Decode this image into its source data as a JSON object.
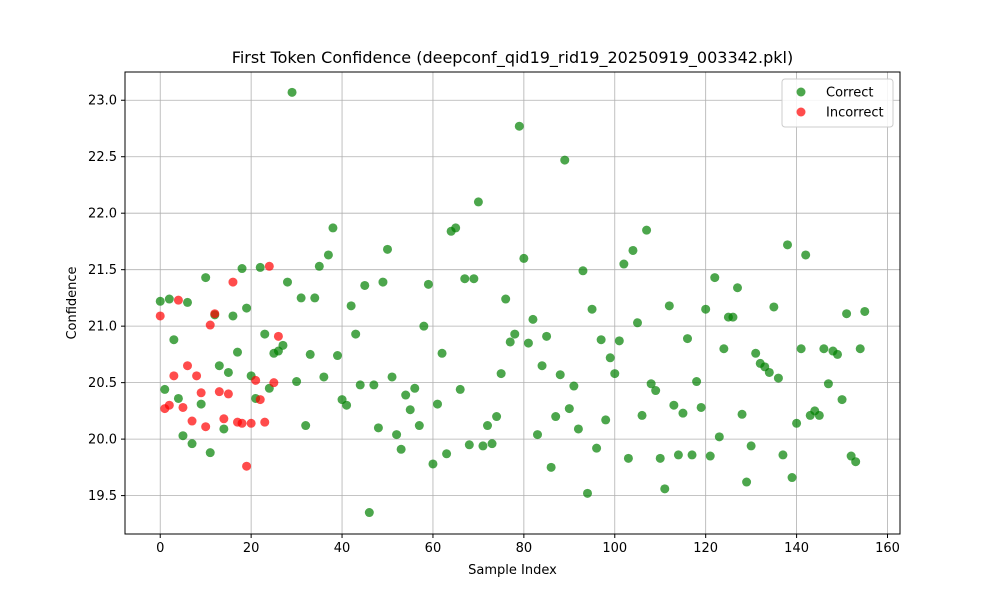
{
  "chart_data": {
    "type": "scatter",
    "title": "First Token Confidence (deepconf_qid19_rid19_20250919_003342.pkl)",
    "xlabel": "Sample Index",
    "ylabel": "Confidence",
    "xlim": [
      -7.75,
      162.75
    ],
    "ylim": [
      19.16,
      32.25
    ],
    "ylim_view": [
      19.16,
      23.25
    ],
    "xticks": [
      0,
      20,
      40,
      60,
      80,
      100,
      120,
      140,
      160
    ],
    "yticks": [
      19.5,
      20.0,
      20.5,
      21.0,
      21.5,
      22.0,
      22.5,
      23.0
    ],
    "grid": true,
    "legend_position": "top-right",
    "series": [
      {
        "name": "Correct",
        "color": "#008000",
        "x": [
          0,
          1,
          2,
          3,
          4,
          5,
          6,
          7,
          9,
          10,
          11,
          12,
          13,
          14,
          15,
          16,
          17,
          18,
          19,
          20,
          21,
          22,
          23,
          24,
          25,
          26,
          27,
          28,
          29,
          30,
          31,
          32,
          33,
          34,
          35,
          36,
          37,
          38,
          39,
          40,
          41,
          42,
          43,
          44,
          45,
          46,
          47,
          48,
          49,
          50,
          51,
          52,
          53,
          54,
          55,
          56,
          57,
          58,
          59,
          60,
          61,
          62,
          63,
          64,
          65,
          66,
          67,
          68,
          69,
          70,
          71,
          72,
          73,
          74,
          75,
          76,
          77,
          78,
          79,
          80,
          81,
          82,
          83,
          84,
          85,
          86,
          87,
          88,
          89,
          90,
          91,
          92,
          93,
          94,
          95,
          96,
          97,
          98,
          99,
          100,
          101,
          102,
          103,
          104,
          105,
          106,
          107,
          108,
          109,
          110,
          111,
          112,
          113,
          114,
          115,
          116,
          117,
          118,
          119,
          120,
          121,
          122,
          123,
          124,
          125,
          126,
          127,
          128,
          129,
          130,
          131,
          132,
          133,
          134,
          135,
          136,
          137,
          138,
          139,
          140,
          141,
          142,
          143,
          144,
          145,
          146,
          147,
          148,
          149,
          150,
          151,
          152,
          153,
          154,
          155
        ],
        "y": [
          21.22,
          20.44,
          21.24,
          20.88,
          20.36,
          20.03,
          21.21,
          19.96,
          20.31,
          21.43,
          19.88,
          21.1,
          20.65,
          20.09,
          20.59,
          21.09,
          20.77,
          21.51,
          21.16,
          20.56,
          20.36,
          21.52,
          20.93,
          20.45,
          20.76,
          20.78,
          20.83,
          21.39,
          23.07,
          20.51,
          21.25,
          20.12,
          20.75,
          21.25,
          21.53,
          20.55,
          21.63,
          21.87,
          20.74,
          20.35,
          20.3,
          21.18,
          20.93,
          20.48,
          21.36,
          19.35,
          20.48,
          20.1,
          21.39,
          21.68,
          20.55,
          20.04,
          19.91,
          20.39,
          20.26,
          20.45,
          20.12,
          21.0,
          21.37,
          19.78,
          20.31,
          20.76,
          19.87,
          21.84,
          21.87,
          20.44,
          21.42,
          19.95,
          21.42,
          22.1,
          19.94,
          20.12,
          19.96,
          20.2,
          20.58,
          21.24,
          20.86,
          20.93,
          22.77,
          21.6,
          20.85,
          21.06,
          20.04,
          20.65,
          20.91,
          19.75,
          20.2,
          20.57,
          22.47,
          20.27,
          20.47,
          20.09,
          21.49,
          19.52,
          21.15,
          19.92,
          20.88,
          20.17,
          20.72,
          20.58,
          20.87,
          21.55,
          19.83,
          21.67,
          21.03,
          20.21,
          21.85,
          20.49,
          20.43,
          19.83,
          19.56,
          21.18,
          20.3,
          19.86,
          20.23,
          20.89,
          19.86,
          20.51,
          20.28,
          21.15,
          19.85,
          21.43,
          20.02,
          20.8,
          21.08,
          21.08,
          21.34,
          20.22,
          19.62,
          19.94,
          20.76,
          20.67,
          20.64,
          20.59,
          21.17,
          20.54,
          19.86,
          21.72,
          19.66,
          20.14,
          20.8,
          21.63,
          20.21,
          20.25,
          20.21,
          20.8,
          20.49,
          20.78,
          20.75,
          20.35,
          21.11,
          19.85,
          19.8,
          20.8,
          21.13
        ]
      },
      {
        "name": "Incorrect",
        "color": "#ff0000",
        "x": [
          0,
          1,
          2,
          3,
          4,
          5,
          6,
          7,
          8,
          9,
          10,
          11,
          12,
          13,
          14,
          15,
          16,
          17,
          18,
          19,
          20,
          21,
          22,
          23,
          24,
          25,
          26
        ],
        "y": [
          21.09,
          20.27,
          20.3,
          20.56,
          21.23,
          20.28,
          20.65,
          20.16,
          20.56,
          20.41,
          20.11,
          21.01,
          21.11,
          20.42,
          20.18,
          20.4,
          21.39,
          20.15,
          20.14,
          19.76,
          20.14,
          20.52,
          20.35,
          20.15,
          21.53,
          20.5,
          20.91
        ]
      }
    ]
  }
}
